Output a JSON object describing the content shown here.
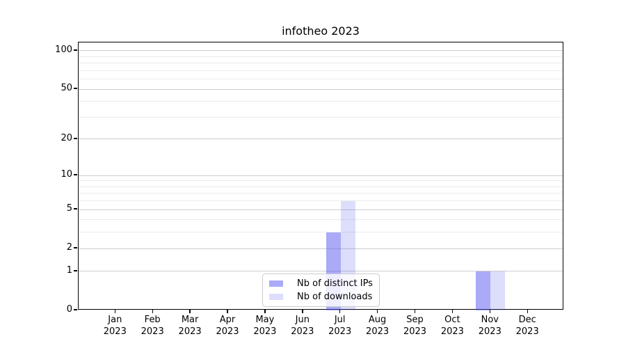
{
  "title": "infotheo 2023",
  "chart_data": {
    "type": "bar",
    "title": "infotheo 2023",
    "categories": [
      "Jan 2023",
      "Feb 2023",
      "Mar 2023",
      "Apr 2023",
      "May 2023",
      "Jun 2023",
      "Jul 2023",
      "Aug 2023",
      "Sep 2023",
      "Oct 2023",
      "Nov 2023",
      "Dec 2023"
    ],
    "series": [
      {
        "name": "Nb of distinct IPs",
        "color": "#5555EF",
        "alpha": 0.5,
        "fill": "rgba(85,85,239,0.5)",
        "values": [
          0,
          0,
          0,
          0,
          0,
          0,
          3,
          0,
          0,
          0,
          1,
          0
        ]
      },
      {
        "name": "Nb of downloads",
        "color": "#5555EF",
        "alpha": 0.2,
        "fill": "rgba(85,85,239,0.2)",
        "values": [
          0,
          0,
          0,
          0,
          0,
          0,
          6,
          0,
          0,
          0,
          1,
          0
        ]
      }
    ],
    "y_ticks_major": [
      0,
      1,
      2,
      5,
      10,
      20,
      50,
      100
    ],
    "y_ticks_minor": [
      3,
      4,
      6,
      7,
      8,
      9,
      30,
      40,
      60,
      70,
      80,
      90
    ],
    "scale": "log10(1+v)",
    "ylim": [
      0,
      115
    ],
    "xlabel": "",
    "ylabel": "",
    "grid": true,
    "legend_position": "lower center",
    "colors": {
      "grid_major": "#cccccc",
      "grid_minor": "#ebebeb",
      "spine": "#000000",
      "background": "#ffffff"
    }
  }
}
